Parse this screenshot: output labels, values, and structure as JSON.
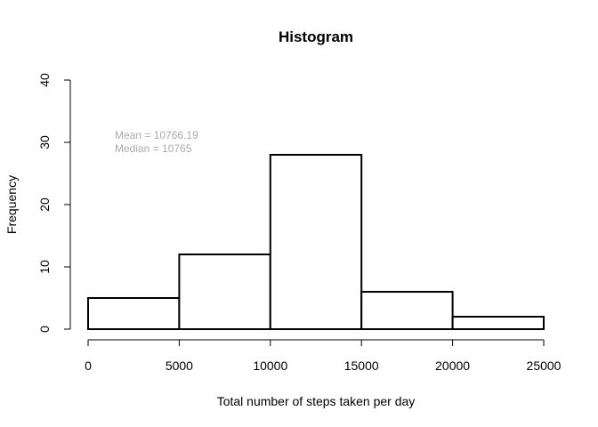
{
  "chart_data": {
    "type": "bar",
    "title": "Histogram",
    "xlabel": "Total number of steps taken per day",
    "ylabel": "Frequency",
    "bins": [
      {
        "from": 0,
        "to": 5000,
        "count": 5
      },
      {
        "from": 5000,
        "to": 10000,
        "count": 12
      },
      {
        "from": 10000,
        "to": 15000,
        "count": 28
      },
      {
        "from": 15000,
        "to": 20000,
        "count": 6
      },
      {
        "from": 20000,
        "to": 25000,
        "count": 2
      }
    ],
    "xlim": [
      0,
      25000
    ],
    "ylim": [
      0,
      40
    ],
    "xticks": [
      0,
      5000,
      10000,
      15000,
      20000,
      25000
    ],
    "yticks": [
      0,
      10,
      20,
      30,
      40
    ],
    "grid": false,
    "annotations": [
      "Mean = 10766.19",
      "Median = 10765"
    ],
    "colors": {
      "bar_fill": "#ffffff",
      "bar_stroke": "#000000",
      "annotation": "#aaaaaa"
    }
  }
}
